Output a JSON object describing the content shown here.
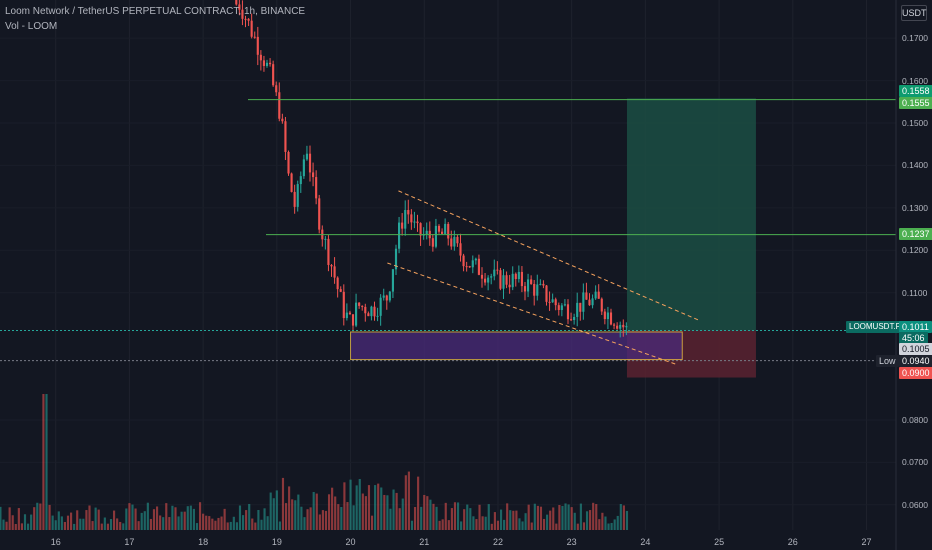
{
  "header": {
    "title": "Loom Network / TetherUS PERPETUAL CONTRACT, 1h, BINANCE",
    "volume_label": "Vol - LOOM"
  },
  "price_axis": {
    "currency": "USDT",
    "ticks": [
      "0.1700",
      "0.1600",
      "0.1500",
      "0.1400",
      "0.1300",
      "0.1200",
      "0.1100",
      "0.0800",
      "0.0700",
      "0.0600"
    ]
  },
  "time_axis": {
    "ticks": [
      "16",
      "17",
      "18",
      "19",
      "20",
      "21",
      "22",
      "23",
      "24",
      "25",
      "26",
      "27"
    ]
  },
  "price_tags": {
    "tp_upper": "0.1558",
    "tp_line": "0.1555",
    "mid_line": "0.1237",
    "symbol": "LOOMUSDT.P",
    "last": "0.1011",
    "countdown": "45:06",
    "entry": "0.1005",
    "low_label": "Low",
    "low": "0.0940",
    "stop": "0.0900"
  },
  "colors": {
    "background": "#131722",
    "up": "#26a69a",
    "down": "#ef5350",
    "hline": "#4caf50",
    "zone_border": "#f7c948",
    "zone_fill": "#4a2a7a",
    "channel": "#f5a25d",
    "profit_zone": "#1b4d43",
    "loss_zone": "#5a2230"
  },
  "chart_data": {
    "type": "candlestick",
    "symbol": "LOOMUSDT.P",
    "timeframe": "1h",
    "exchange": "BINANCE",
    "y_range": [
      0.055,
      0.179
    ],
    "x_range": [
      "15",
      "27.4"
    ],
    "price_series_hint": [
      [
        "18.5",
        0.178
      ],
      [
        "18.7",
        0.17
      ],
      [
        "18.9",
        0.162
      ],
      [
        "19.05",
        0.152
      ],
      [
        "19.15",
        0.138
      ],
      [
        "19.25",
        0.13
      ],
      [
        "19.4",
        0.145
      ],
      [
        "19.5",
        0.134
      ],
      [
        "19.6",
        0.125
      ],
      [
        "19.75",
        0.116
      ],
      [
        "19.9",
        0.106
      ],
      [
        "20.0",
        0.103
      ],
      [
        "20.1",
        0.107
      ],
      [
        "20.3",
        0.106
      ],
      [
        "20.5",
        0.109
      ],
      [
        "20.65",
        0.124
      ],
      [
        "20.75",
        0.13
      ],
      [
        "20.9",
        0.124
      ],
      [
        "21.1",
        0.123
      ],
      [
        "21.3",
        0.124
      ],
      [
        "21.45",
        0.12
      ],
      [
        "21.6",
        0.117
      ],
      [
        "21.8",
        0.115
      ],
      [
        "22.0",
        0.113
      ],
      [
        "22.2",
        0.113
      ],
      [
        "22.4",
        0.112
      ],
      [
        "22.6",
        0.11
      ],
      [
        "22.8",
        0.107
      ],
      [
        "23.0",
        0.106
      ],
      [
        "23.2",
        0.108
      ],
      [
        "23.35",
        0.108
      ],
      [
        "23.5",
        0.105
      ],
      [
        "23.65",
        0.103
      ],
      [
        "23.75",
        0.1011
      ]
    ],
    "horizontal_lines": [
      0.1555,
      0.1237,
      0.1011,
      0.094
    ],
    "entry_zone": {
      "from": "20.0",
      "to": "24.5",
      "low": 0.094,
      "high": 0.1005
    },
    "long_position": {
      "entry": 0.1011,
      "target": 0.1558,
      "stop": 0.09,
      "from": "23.75",
      "to": "25.5"
    },
    "channel": {
      "upper": [
        [
          "20.65",
          0.134
        ],
        [
          "24.0",
          0.101
        ]
      ],
      "lower": [
        [
          "20.5",
          0.117
        ],
        [
          "24.0",
          0.092
        ]
      ]
    }
  }
}
